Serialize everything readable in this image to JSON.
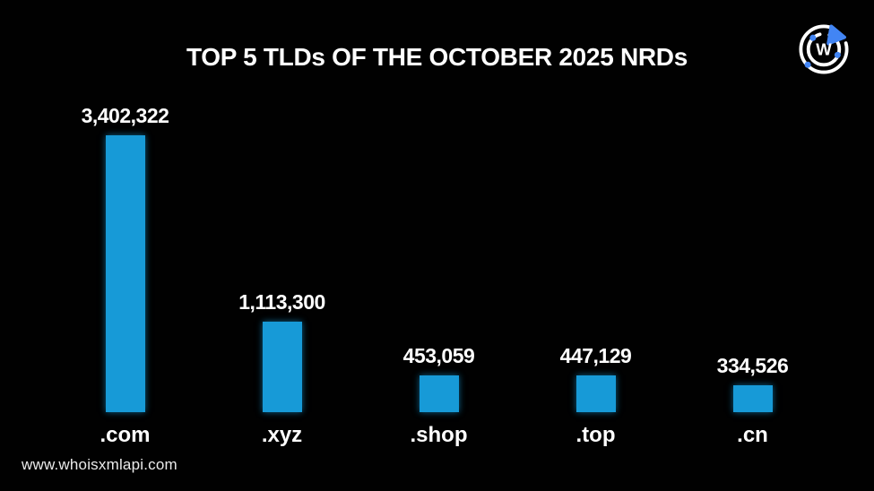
{
  "title": "TOP 5 TLDs OF THE OCTOBER 2025 NRDs",
  "watermark": "www.whoisxmlapi.com",
  "logo": {
    "letter": "W",
    "accent_blue": "#4285f4",
    "ring_color": "#ffffff"
  },
  "colors": {
    "background": "#010101",
    "bar": "#179ad7",
    "text": "#ffffff"
  },
  "chart_data": {
    "type": "bar",
    "title": "TOP 5 TLDs OF THE OCTOBER 2025 NRDs",
    "categories": [
      ".com",
      ".xyz",
      ".shop",
      ".top",
      ".cn"
    ],
    "values": [
      3402322,
      1113300,
      453059,
      447129,
      334526
    ],
    "value_labels": [
      "3,402,322",
      "1,113,300",
      "453,059",
      "447,129",
      "334,526"
    ],
    "xlabel": "",
    "ylabel": "",
    "ylim": [
      0,
      3402322
    ],
    "grid": false,
    "legend": false,
    "bar_color": "#179ad7",
    "background": "#010101"
  }
}
